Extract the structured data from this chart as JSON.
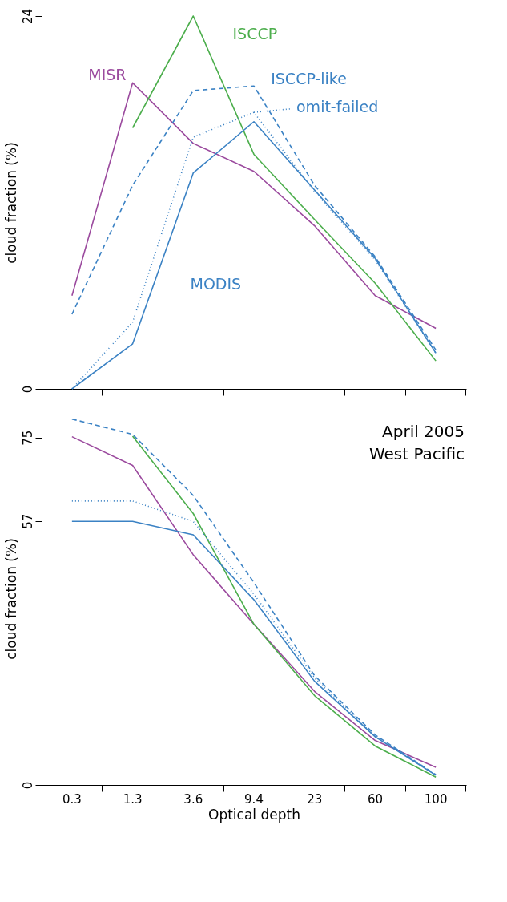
{
  "chart_data": [
    {
      "type": "line",
      "ylabel": "cloud fraction (%)",
      "categories": [
        "0.3",
        "1.3",
        "3.6",
        "9.4",
        "23",
        "60",
        "100"
      ],
      "ylim": [
        0,
        24
      ],
      "yticks": [
        0,
        24
      ],
      "tick_labels": "y",
      "grid": false,
      "marker": "none",
      "series": [
        {
          "name": "MISR",
          "color": "#9b4a9e",
          "line_style": "solid",
          "values": [
            6.0,
            19.7,
            15.8,
            14.0,
            10.5,
            6.0,
            3.9
          ]
        },
        {
          "name": "ISCCP",
          "color": "#4cae4c",
          "line_style": "solid",
          "values": [
            null,
            16.8,
            24.0,
            15.1,
            10.9,
            6.8,
            1.8
          ]
        },
        {
          "name": "ISCCP-like",
          "color": "#3b82c4",
          "line_style": "dashed",
          "values": [
            4.8,
            13.1,
            19.2,
            19.5,
            13.1,
            8.5,
            2.5
          ]
        },
        {
          "name": "omit-failed",
          "color": "#3b82c4",
          "line_style": "dotted",
          "values": [
            0,
            4.3,
            16.2,
            17.8,
            12.7,
            8.3,
            2.3
          ]
        },
        {
          "name": "MODIS",
          "color": "#3b82c4",
          "line_style": "solid",
          "values": [
            0,
            2.9,
            13.9,
            17.2,
            12.8,
            8.4,
            2.3
          ]
        }
      ]
    },
    {
      "type": "line",
      "xlabel": "Optical depth",
      "ylabel": "cloud fraction (%)",
      "annotations": [
        "April 2005",
        "West Pacific"
      ],
      "categories": [
        "0.3",
        "1.3",
        "3.6",
        "9.4",
        "23",
        "60",
        "100"
      ],
      "ylim": [
        0,
        80.5
      ],
      "yticks": [
        0,
        57,
        75
      ],
      "grid": false,
      "marker": "none",
      "series": [
        {
          "color": "#9b4a9e",
          "line_style": "solid",
          "values": [
            75.2,
            69.0,
            49.7,
            34.7,
            20.2,
            9.6,
            3.8
          ]
        },
        {
          "color": "#4cae4c",
          "line_style": "solid",
          "values": [
            null,
            75.3,
            58.6,
            34.7,
            19.3,
            8.4,
            1.7
          ]
        },
        {
          "color": "#3b82c4",
          "line_style": "dashed",
          "values": [
            79.0,
            75.7,
            62.5,
            43.7,
            23.6,
            10.8,
            2.2
          ]
        },
        {
          "color": "#3b82c4",
          "line_style": "dotted",
          "values": [
            61.3,
            61.3,
            56.9,
            41.2,
            23.1,
            10.4,
            2.2
          ]
        },
        {
          "color": "#3b82c4",
          "line_style": "solid",
          "values": [
            56.9,
            56.9,
            54.0,
            40.0,
            22.4,
            10.4,
            2.1
          ]
        }
      ]
    }
  ]
}
